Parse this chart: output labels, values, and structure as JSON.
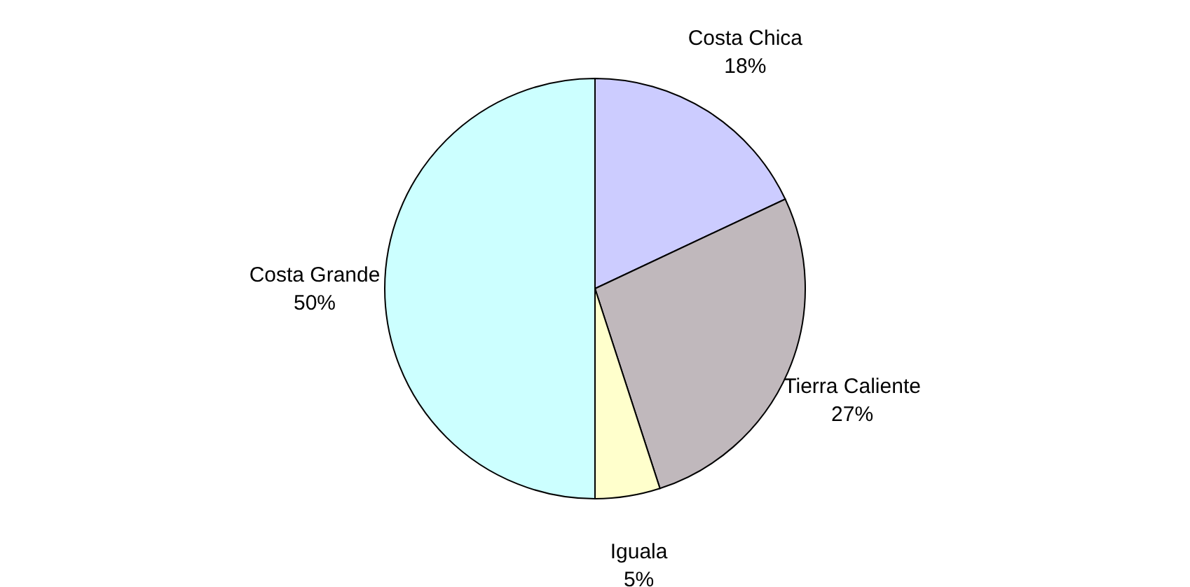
{
  "chart_data": {
    "type": "pie",
    "categories": [
      "Costa Chica",
      "Tierra Caliente",
      "Iguala",
      "Costa Grande"
    ],
    "values": [
      18,
      27,
      5,
      50
    ],
    "value_labels": [
      "18%",
      "27%",
      "5%",
      "50%"
    ],
    "colors": [
      "#ccccff",
      "#c0b8bc",
      "#ffffcc",
      "#ccffff"
    ],
    "legend": false
  }
}
